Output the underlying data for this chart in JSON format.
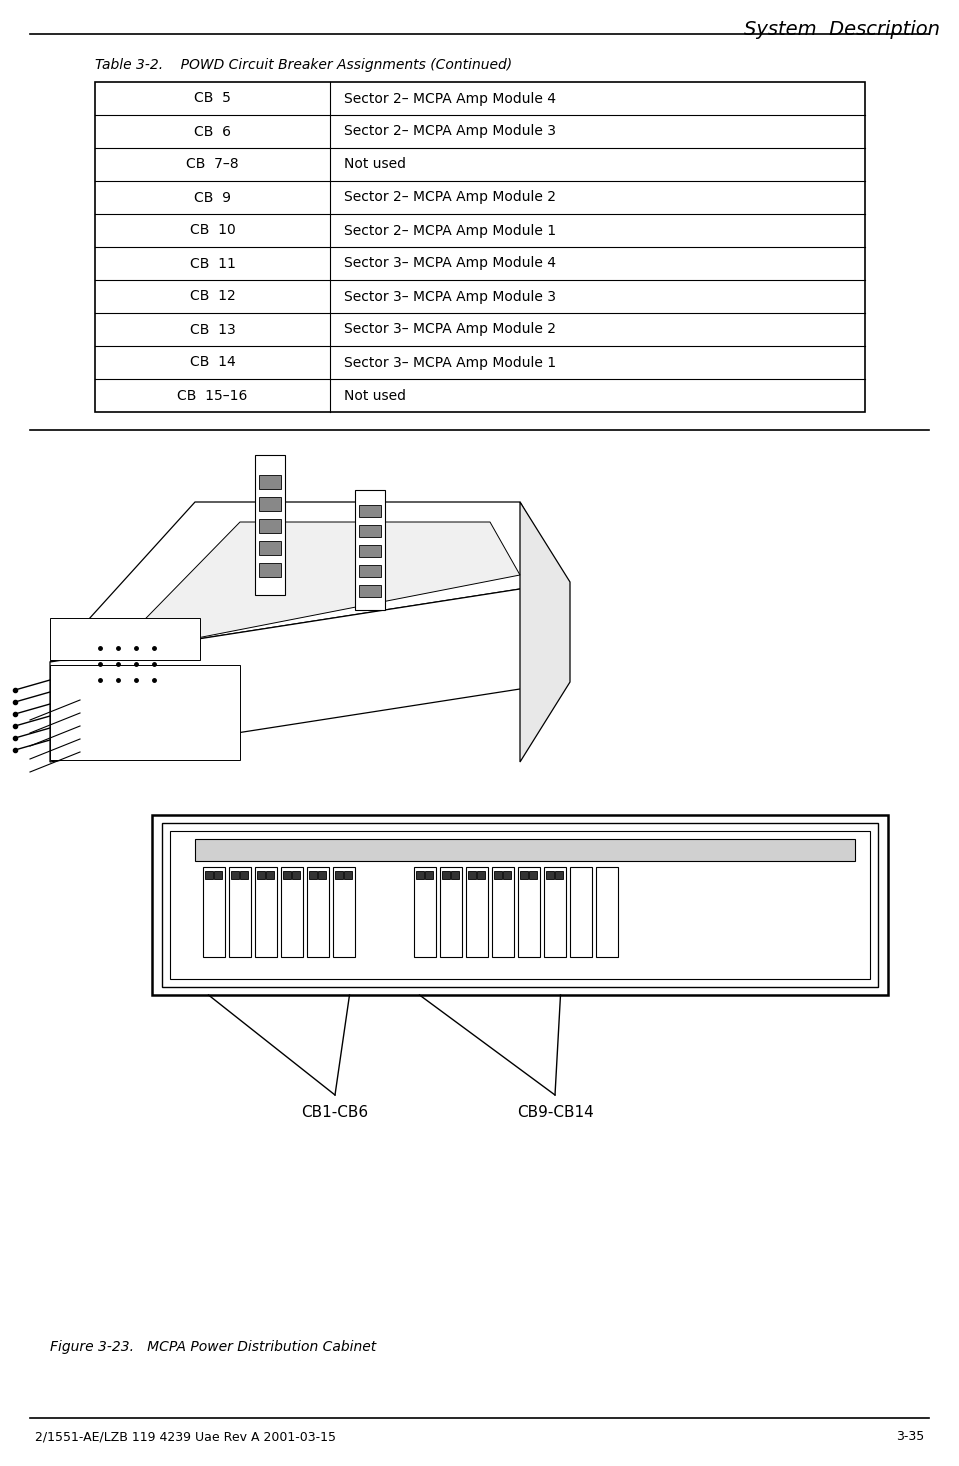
{
  "title_header": "System  Description",
  "table_title": "Table 3-2.    POWD Circuit Breaker Assignments (Continued)",
  "table_rows": [
    [
      "CB  5",
      "Sector 2– MCPA Amp Module 4"
    ],
    [
      "CB  6",
      "Sector 2– MCPA Amp Module 3"
    ],
    [
      "CB  7–8",
      "Not used"
    ],
    [
      "CB  9",
      "Sector 2– MCPA Amp Module 2"
    ],
    [
      "CB  10",
      "Sector 2– MCPA Amp Module 1"
    ],
    [
      "CB  11",
      "Sector 3– MCPA Amp Module 4"
    ],
    [
      "CB  12",
      "Sector 3– MCPA Amp Module 3"
    ],
    [
      "CB  13",
      "Sector 3– MCPA Amp Module 2"
    ],
    [
      "CB  14",
      "Sector 3– MCPA Amp Module 1"
    ],
    [
      "CB  15–16",
      "Not used"
    ]
  ],
  "figure_caption": "Figure 3-23.   MCPA Power Distribution Cabinet",
  "footer_left": "2/1551-AE/LZB 119 4239 Uae Rev A 2001-03-15",
  "footer_right": "3-35",
  "label_cb1cb6": "CB1-CB6",
  "label_cb9cb14": "CB9-CB14",
  "bg_color": "#ffffff",
  "line_color": "#000000"
}
